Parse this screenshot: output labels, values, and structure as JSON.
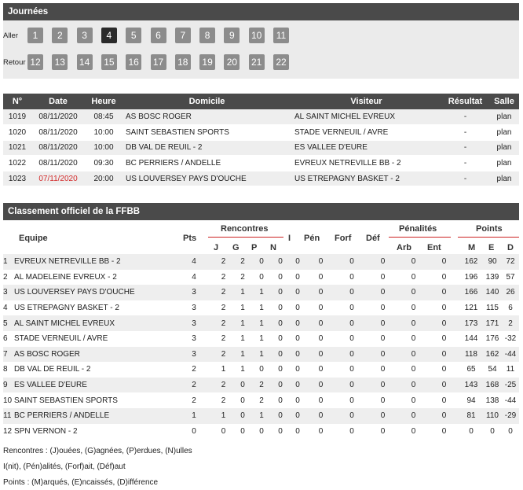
{
  "journees": {
    "title": "Journées",
    "aller_label": "Aller",
    "retour_label": "Retour",
    "aller": [
      "1",
      "2",
      "3",
      "4",
      "5",
      "6",
      "7",
      "8",
      "9",
      "10",
      "11"
    ],
    "retour": [
      "12",
      "13",
      "14",
      "15",
      "16",
      "17",
      "18",
      "19",
      "20",
      "21",
      "22"
    ],
    "active": "4"
  },
  "matches": {
    "headers": {
      "num": "N°",
      "date": "Date",
      "heure": "Heure",
      "domicile": "Domicile",
      "visiteur": "Visiteur",
      "resultat": "Résultat",
      "salle": "Salle"
    },
    "rows": [
      {
        "num": "1019",
        "date": "08/11/2020",
        "heure": "08:45",
        "domicile": "AS BOSC ROGER",
        "visiteur": "AL SAINT MICHEL EVREUX",
        "resultat": "-",
        "salle": "plan",
        "date_red": false
      },
      {
        "num": "1020",
        "date": "08/11/2020",
        "heure": "10:00",
        "domicile": "SAINT SEBASTIEN SPORTS",
        "visiteur": "STADE VERNEUIL / AVRE",
        "resultat": "-",
        "salle": "plan",
        "date_red": false
      },
      {
        "num": "1021",
        "date": "08/11/2020",
        "heure": "10:00",
        "domicile": "DB VAL DE REUIL - 2",
        "visiteur": "ES VALLEE D'EURE",
        "resultat": "-",
        "salle": "plan",
        "date_red": false
      },
      {
        "num": "1022",
        "date": "08/11/2020",
        "heure": "09:30",
        "domicile": "BC PERRIERS / ANDELLE",
        "visiteur": "EVREUX NETREVILLE BB - 2",
        "resultat": "-",
        "salle": "plan",
        "date_red": false
      },
      {
        "num": "1023",
        "date": "07/11/2020",
        "heure": "20:00",
        "domicile": "US LOUVERSEY PAYS D'OUCHE",
        "visiteur": "US ETREPAGNY BASKET - 2",
        "resultat": "-",
        "salle": "plan",
        "date_red": true
      }
    ]
  },
  "classement": {
    "title": "Classement officiel de la FFBB",
    "headers": {
      "equipe": "Equipe",
      "pts": "Pts",
      "rencontres": "Rencontres",
      "i": "I",
      "pen": "Pén",
      "forf": "Forf",
      "def": "Déf",
      "penalites": "Pénalités",
      "points": "Points",
      "j": "J",
      "g": "G",
      "p": "P",
      "n": "N",
      "arb": "Arb",
      "ent": "Ent",
      "m": "M",
      "e": "E",
      "d": "D"
    },
    "rows": [
      {
        "rank": "1",
        "team": "EVREUX NETREVILLE BB - 2",
        "pts": "4",
        "j": "2",
        "g": "2",
        "p": "0",
        "n": "0",
        "i": "0",
        "pen": "0",
        "forf": "0",
        "def": "0",
        "arb": "0",
        "ent": "0",
        "m": "162",
        "e": "90",
        "d": "72"
      },
      {
        "rank": "2",
        "team": "AL MADELEINE EVREUX - 2",
        "pts": "4",
        "j": "2",
        "g": "2",
        "p": "0",
        "n": "0",
        "i": "0",
        "pen": "0",
        "forf": "0",
        "def": "0",
        "arb": "0",
        "ent": "0",
        "m": "196",
        "e": "139",
        "d": "57"
      },
      {
        "rank": "3",
        "team": "US LOUVERSEY PAYS D'OUCHE",
        "pts": "3",
        "j": "2",
        "g": "1",
        "p": "1",
        "n": "0",
        "i": "0",
        "pen": "0",
        "forf": "0",
        "def": "0",
        "arb": "0",
        "ent": "0",
        "m": "166",
        "e": "140",
        "d": "26"
      },
      {
        "rank": "4",
        "team": "US ETREPAGNY BASKET - 2",
        "pts": "3",
        "j": "2",
        "g": "1",
        "p": "1",
        "n": "0",
        "i": "0",
        "pen": "0",
        "forf": "0",
        "def": "0",
        "arb": "0",
        "ent": "0",
        "m": "121",
        "e": "115",
        "d": "6"
      },
      {
        "rank": "5",
        "team": "AL SAINT MICHEL EVREUX",
        "pts": "3",
        "j": "2",
        "g": "1",
        "p": "1",
        "n": "0",
        "i": "0",
        "pen": "0",
        "forf": "0",
        "def": "0",
        "arb": "0",
        "ent": "0",
        "m": "173",
        "e": "171",
        "d": "2"
      },
      {
        "rank": "6",
        "team": "STADE VERNEUIL / AVRE",
        "pts": "3",
        "j": "2",
        "g": "1",
        "p": "1",
        "n": "0",
        "i": "0",
        "pen": "0",
        "forf": "0",
        "def": "0",
        "arb": "0",
        "ent": "0",
        "m": "144",
        "e": "176",
        "d": "-32"
      },
      {
        "rank": "7",
        "team": "AS BOSC ROGER",
        "pts": "3",
        "j": "2",
        "g": "1",
        "p": "1",
        "n": "0",
        "i": "0",
        "pen": "0",
        "forf": "0",
        "def": "0",
        "arb": "0",
        "ent": "0",
        "m": "118",
        "e": "162",
        "d": "-44"
      },
      {
        "rank": "8",
        "team": "DB VAL DE REUIL - 2",
        "pts": "2",
        "j": "1",
        "g": "1",
        "p": "0",
        "n": "0",
        "i": "0",
        "pen": "0",
        "forf": "0",
        "def": "0",
        "arb": "0",
        "ent": "0",
        "m": "65",
        "e": "54",
        "d": "11"
      },
      {
        "rank": "9",
        "team": "ES VALLEE D'EURE",
        "pts": "2",
        "j": "2",
        "g": "0",
        "p": "2",
        "n": "0",
        "i": "0",
        "pen": "0",
        "forf": "0",
        "def": "0",
        "arb": "0",
        "ent": "0",
        "m": "143",
        "e": "168",
        "d": "-25"
      },
      {
        "rank": "10",
        "team": "SAINT SEBASTIEN SPORTS",
        "pts": "2",
        "j": "2",
        "g": "0",
        "p": "2",
        "n": "0",
        "i": "0",
        "pen": "0",
        "forf": "0",
        "def": "0",
        "arb": "0",
        "ent": "0",
        "m": "94",
        "e": "138",
        "d": "-44"
      },
      {
        "rank": "11",
        "team": "BC PERRIERS / ANDELLE",
        "pts": "1",
        "j": "1",
        "g": "0",
        "p": "1",
        "n": "0",
        "i": "0",
        "pen": "0",
        "forf": "0",
        "def": "0",
        "arb": "0",
        "ent": "0",
        "m": "81",
        "e": "110",
        "d": "-29"
      },
      {
        "rank": "12",
        "team": "SPN VERNON - 2",
        "pts": "0",
        "j": "0",
        "g": "0",
        "p": "0",
        "n": "0",
        "i": "0",
        "pen": "0",
        "forf": "0",
        "def": "0",
        "arb": "0",
        "ent": "0",
        "m": "0",
        "e": "0",
        "d": "0"
      }
    ]
  },
  "legend": {
    "rencontres": "Rencontres : (J)ouées, (G)agnées, (P)erdues, (N)ulles",
    "infos": "I(nit), (Pén)alités, (Forf)ait, (Déf)aut",
    "points": "Points : (M)arqués, (E)ncaissés, (D)ifférence"
  },
  "colors": {
    "header_bg": "#4a4a4a",
    "accent_red": "#cc2222",
    "button_bg": "#8c8c8c",
    "button_active": "#2b2b2b"
  }
}
